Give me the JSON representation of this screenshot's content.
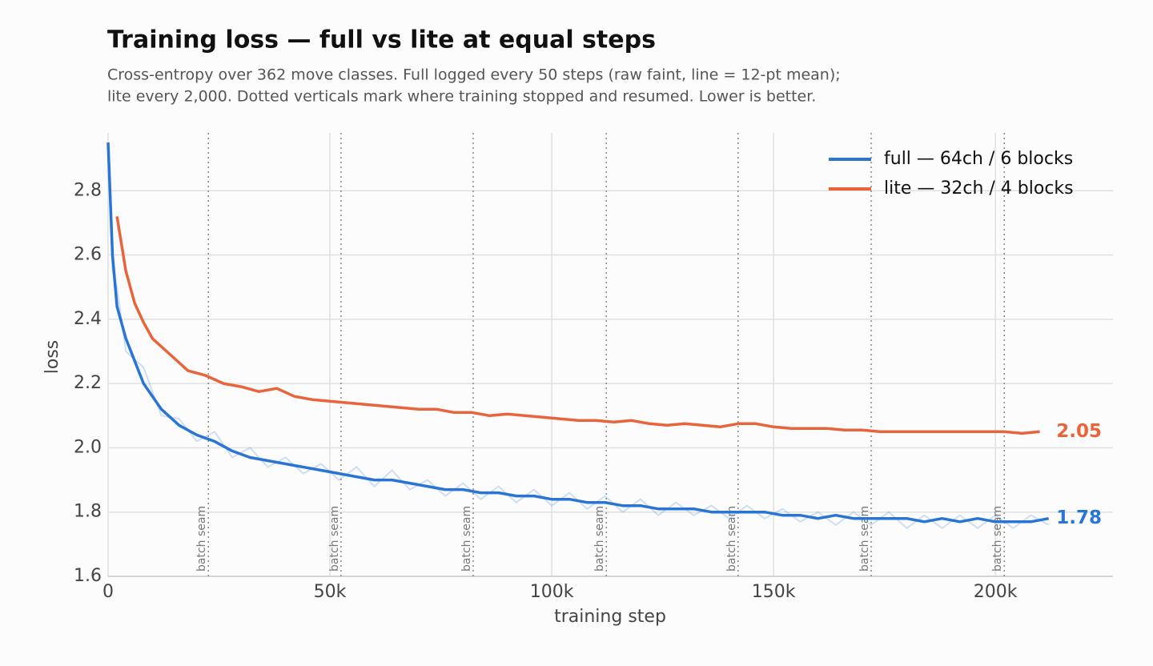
{
  "chart_data": {
    "type": "line",
    "title": "Training loss — full vs lite at equal steps",
    "subtitle": [
      "Cross-entropy over 362 move classes. Full logged every 50 steps (raw faint, line = 12-pt mean);",
      "lite every 2,000. Dotted verticals mark where training stopped and resumed. Lower is better."
    ],
    "x_label": "training step",
    "y_label": "loss",
    "xlim": [
      0,
      226500
    ],
    "ylim": [
      1.6,
      2.98
    ],
    "xticks": [
      0,
      {
        "value": 50000,
        "label": "50k"
      },
      {
        "value": 100000,
        "label": "100k"
      },
      {
        "value": 150000,
        "label": "150k"
      },
      {
        "value": 200000,
        "label": "200k"
      }
    ],
    "yticks": [
      1.6,
      1.8,
      {
        "value": 2,
        "label": "2.0"
      },
      2.2,
      2.4,
      2.6,
      2.8
    ],
    "grid": true,
    "legend": "upper right",
    "seams": [
      22600,
      52500,
      82300,
      112300,
      142000,
      172000,
      202000
    ],
    "seam_label": "batch seam",
    "series": [
      {
        "name": "full — 64ch / 6 blocks",
        "color": "#2a75d3",
        "end_label": "1.78",
        "x": [
          0,
          1000,
          2000,
          4000,
          8000,
          12000,
          16000,
          20000,
          24000,
          28000,
          32000,
          36000,
          40000,
          44000,
          48000,
          52000,
          56000,
          60000,
          64000,
          68000,
          72000,
          76000,
          80000,
          84000,
          88000,
          92000,
          96000,
          100000,
          104000,
          108000,
          112000,
          116000,
          120000,
          124000,
          128000,
          132000,
          136000,
          140000,
          144000,
          148000,
          152000,
          156000,
          160000,
          164000,
          168000,
          172000,
          176000,
          180000,
          184000,
          188000,
          192000,
          196000,
          200000,
          204000,
          208000,
          212000
        ],
        "values": [
          2.95,
          2.6,
          2.44,
          2.34,
          2.2,
          2.12,
          2.07,
          2.04,
          2.02,
          1.99,
          1.97,
          1.96,
          1.95,
          1.94,
          1.93,
          1.92,
          1.91,
          1.9,
          1.9,
          1.89,
          1.88,
          1.87,
          1.87,
          1.86,
          1.86,
          1.85,
          1.85,
          1.84,
          1.84,
          1.83,
          1.83,
          1.82,
          1.82,
          1.81,
          1.81,
          1.81,
          1.8,
          1.8,
          1.8,
          1.8,
          1.79,
          1.79,
          1.78,
          1.79,
          1.78,
          1.78,
          1.78,
          1.78,
          1.77,
          1.78,
          1.77,
          1.78,
          1.77,
          1.77,
          1.77,
          1.78
        ],
        "raw_values": [
          2.95,
          2.55,
          2.5,
          2.3,
          2.25,
          2.1,
          2.09,
          2.02,
          2.05,
          1.97,
          2.0,
          1.94,
          1.97,
          1.92,
          1.95,
          1.9,
          1.94,
          1.88,
          1.93,
          1.87,
          1.9,
          1.85,
          1.89,
          1.84,
          1.88,
          1.83,
          1.87,
          1.82,
          1.86,
          1.81,
          1.85,
          1.8,
          1.84,
          1.79,
          1.83,
          1.79,
          1.82,
          1.78,
          1.82,
          1.78,
          1.81,
          1.77,
          1.8,
          1.76,
          1.8,
          1.76,
          1.8,
          1.75,
          1.79,
          1.75,
          1.79,
          1.75,
          1.79,
          1.75,
          1.79,
          1.76
        ]
      },
      {
        "name": "lite — 32ch / 4 blocks",
        "color": "#e8643a",
        "end_label": "2.05",
        "x": [
          2000,
          4000,
          6000,
          8000,
          10000,
          14000,
          18000,
          22000,
          26000,
          30000,
          34000,
          38000,
          42000,
          46000,
          50000,
          54000,
          58000,
          62000,
          66000,
          70000,
          74000,
          78000,
          82000,
          86000,
          90000,
          94000,
          98000,
          102000,
          106000,
          110000,
          114000,
          118000,
          122000,
          126000,
          130000,
          134000,
          138000,
          142000,
          146000,
          150000,
          154000,
          158000,
          162000,
          166000,
          170000,
          174000,
          178000,
          182000,
          186000,
          190000,
          194000,
          198000,
          202000,
          206000,
          210000
        ],
        "values": [
          2.72,
          2.55,
          2.45,
          2.39,
          2.34,
          2.29,
          2.24,
          2.225,
          2.2,
          2.19,
          2.175,
          2.185,
          2.16,
          2.15,
          2.145,
          2.14,
          2.135,
          2.13,
          2.125,
          2.12,
          2.12,
          2.11,
          2.11,
          2.1,
          2.105,
          2.1,
          2.095,
          2.09,
          2.085,
          2.085,
          2.08,
          2.085,
          2.075,
          2.07,
          2.075,
          2.07,
          2.065,
          2.075,
          2.075,
          2.065,
          2.06,
          2.06,
          2.06,
          2.055,
          2.055,
          2.05,
          2.05,
          2.05,
          2.05,
          2.05,
          2.05,
          2.05,
          2.05,
          2.045,
          2.05
        ]
      }
    ]
  }
}
